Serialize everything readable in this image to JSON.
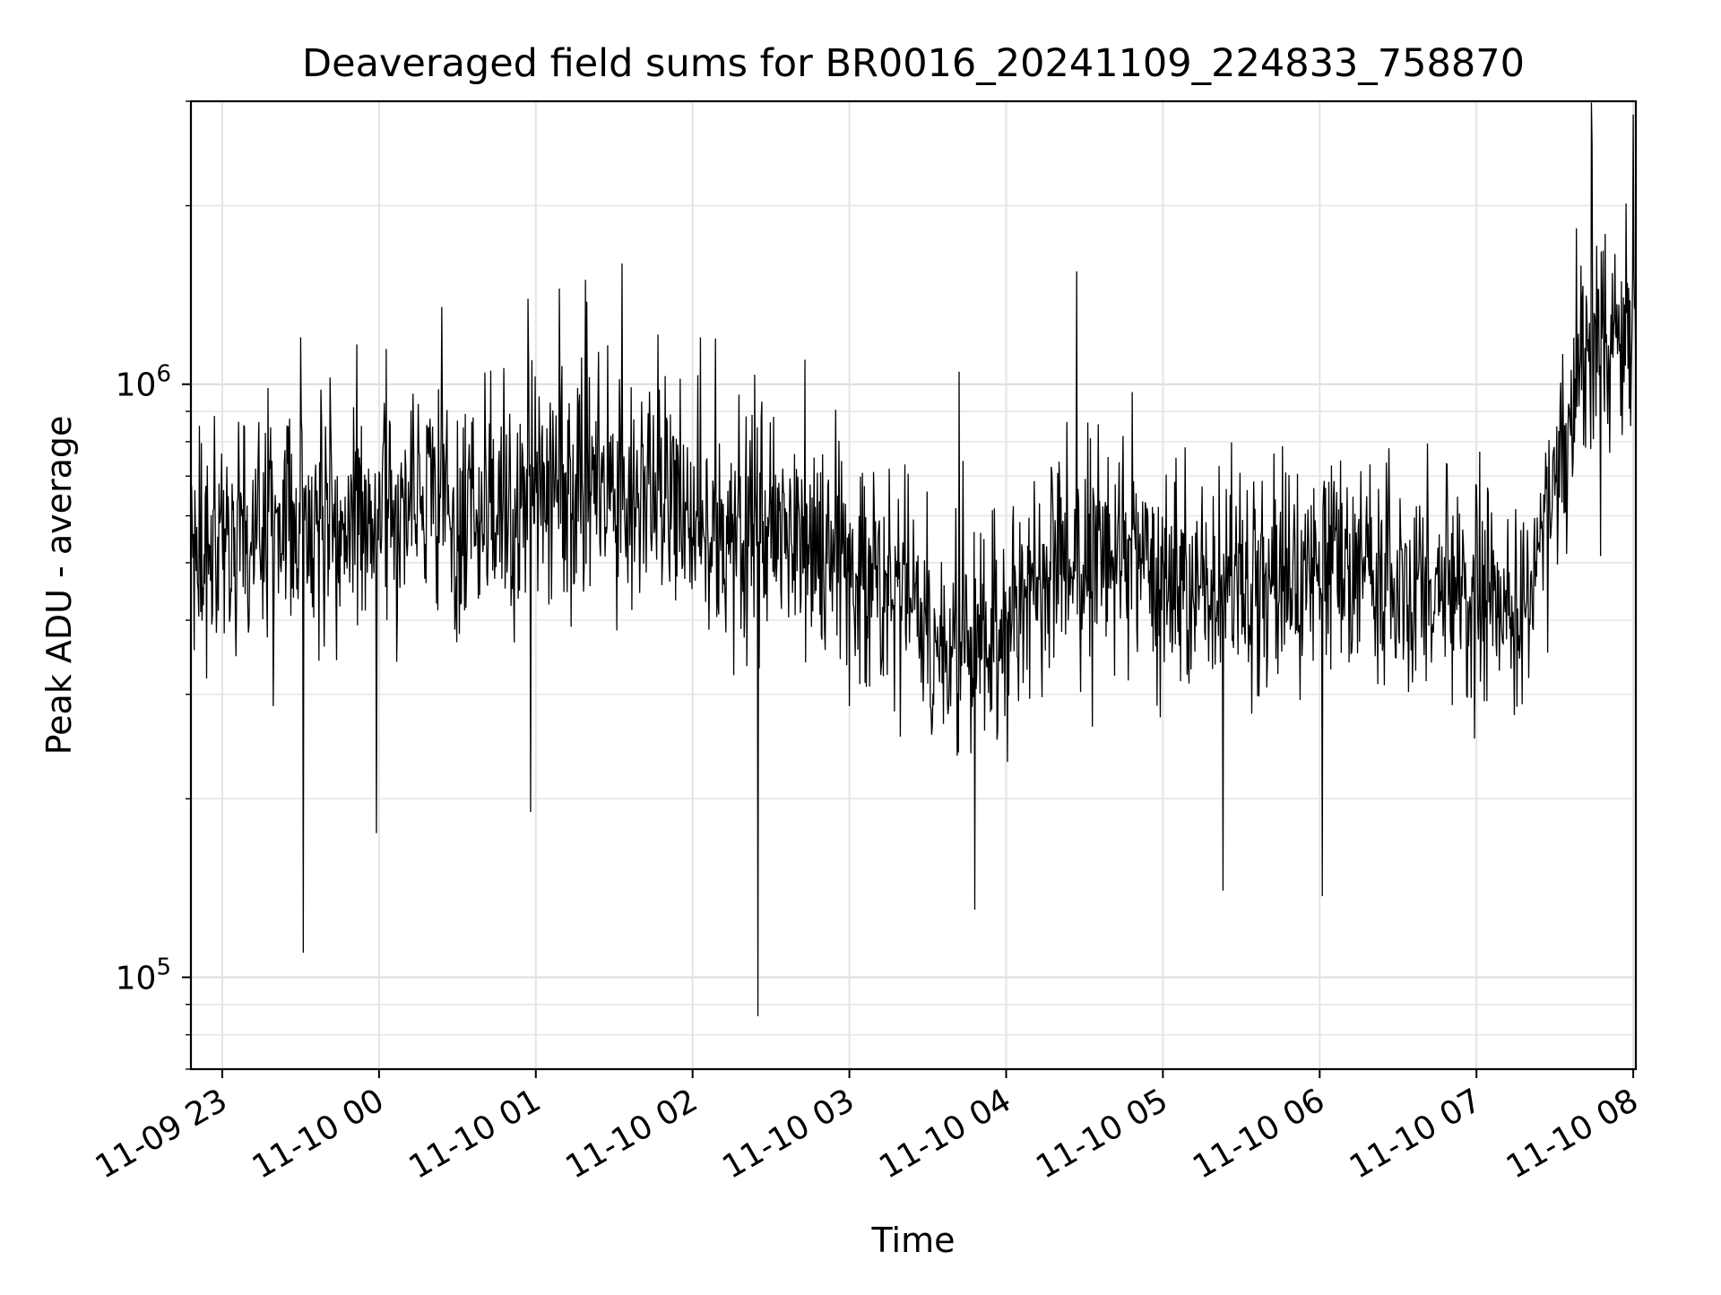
{
  "chart_data": {
    "type": "line",
    "title": "Deaveraged field sums for BR0016_20241109_224833_758870",
    "xlabel": "Time",
    "ylabel": "Peak ADU - average",
    "yscale": "log",
    "ylim": [
      70000,
      3000000
    ],
    "xlim": [
      "2024-11-09 22:48",
      "2024-11-10 08:01"
    ],
    "grid": true,
    "line_color": "#000000",
    "x_ticks": [
      "11-09 23",
      "11-10 00",
      "11-10 01",
      "11-10 02",
      "11-10 03",
      "11-10 04",
      "11-10 05",
      "11-10 06",
      "11-10 07",
      "11-10 08"
    ],
    "x_tick_times": [
      "2024-11-09 23:00",
      "2024-11-10 00:00",
      "2024-11-10 01:00",
      "2024-11-10 02:00",
      "2024-11-10 03:00",
      "2024-11-10 04:00",
      "2024-11-10 05:00",
      "2024-11-10 06:00",
      "2024-11-10 07:00",
      "2024-11-10 08:00"
    ],
    "y_ticks_major": [
      {
        "value": 100000,
        "mantissa": "10",
        "exponent": "5"
      },
      {
        "value": 1000000,
        "mantissa": "10",
        "exponent": "6"
      }
    ],
    "series": [
      {
        "x": [
          "2024-11-09 22:48",
          "2024-11-09 23:00",
          "2024-11-09 23:20",
          "2024-11-09 23:40",
          "2024-11-10 00:00",
          "2024-11-10 00:20",
          "2024-11-10 00:40",
          "2024-11-10 01:00",
          "2024-11-10 01:20",
          "2024-11-10 01:40",
          "2024-11-10 02:00",
          "2024-11-10 02:20",
          "2024-11-10 02:40",
          "2024-11-10 03:00",
          "2024-11-10 03:20",
          "2024-11-10 03:40",
          "2024-11-10 04:00",
          "2024-11-10 04:20",
          "2024-11-10 04:40",
          "2024-11-10 05:00",
          "2024-11-10 05:20",
          "2024-11-10 05:40",
          "2024-11-10 06:00",
          "2024-11-10 06:20",
          "2024-11-10 06:40",
          "2024-11-10 07:00",
          "2024-11-10 07:20",
          "2024-11-10 07:40",
          "2024-11-10 08:01"
        ],
        "y": [
          550000,
          560000,
          580000,
          600000,
          610000,
          630000,
          620000,
          640000,
          700000,
          680000,
          600000,
          580000,
          570000,
          500000,
          440000,
          340000,
          410000,
          500000,
          520000,
          460000,
          470000,
          450000,
          470000,
          480000,
          440000,
          430000,
          420000,
          1100000,
          1300000
        ],
        "spread": [
          1.45,
          1.45,
          1.5,
          1.5,
          1.5,
          1.5,
          1.5,
          1.55,
          1.55,
          1.55,
          1.5,
          1.5,
          1.5,
          1.5,
          1.5,
          1.55,
          1.55,
          1.5,
          1.5,
          1.5,
          1.5,
          1.5,
          1.45,
          1.45,
          1.5,
          1.5,
          1.45,
          1.55,
          1.55
        ],
        "spikes_high": [
          {
            "x": "2024-11-09 23:30",
            "y": 1200000
          },
          {
            "x": "2024-11-10 00:24",
            "y": 1350000
          },
          {
            "x": "2024-11-10 01:09",
            "y": 1450000
          },
          {
            "x": "2024-11-10 01:19",
            "y": 1500000
          },
          {
            "x": "2024-11-10 02:03",
            "y": 1200000
          },
          {
            "x": "2024-11-10 02:43",
            "y": 1100000
          },
          {
            "x": "2024-11-10 03:42",
            "y": 1050000
          },
          {
            "x": "2024-11-10 04:27",
            "y": 1550000
          },
          {
            "x": "2024-11-10 07:44",
            "y": 3000000
          },
          {
            "x": "2024-11-10 08:00",
            "y": 2850000
          }
        ],
        "spikes_low": [
          {
            "x": "2024-11-09 23:31",
            "y": 110000
          },
          {
            "x": "2024-11-09 23:59",
            "y": 175000
          },
          {
            "x": "2024-11-10 00:58",
            "y": 190000
          },
          {
            "x": "2024-11-10 02:25",
            "y": 86000
          },
          {
            "x": "2024-11-10 03:48",
            "y": 130000
          },
          {
            "x": "2024-11-10 05:23",
            "y": 140000
          },
          {
            "x": "2024-11-10 06:01",
            "y": 137000
          }
        ]
      }
    ]
  }
}
